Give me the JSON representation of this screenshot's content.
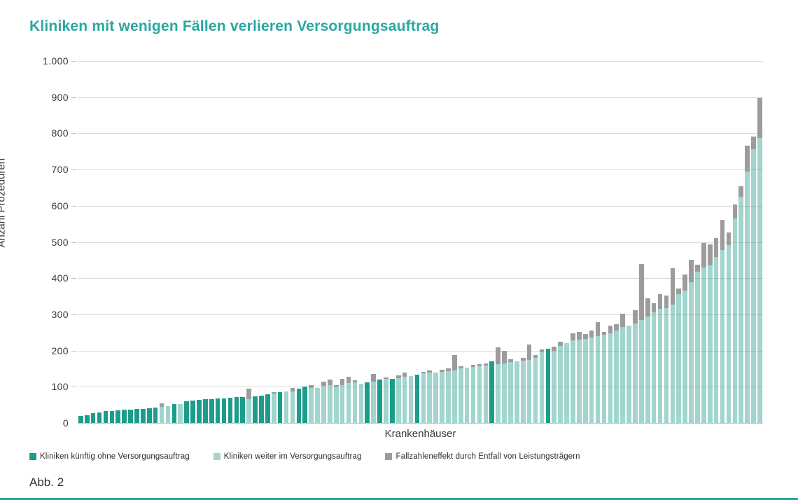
{
  "page": {
    "title": "Kliniken mit wenigen Fällen verlieren Versorgungsauftrag",
    "caption": "Abb. 2"
  },
  "colors": {
    "title_teal": "#2ba6a1",
    "bar_dark_teal": "#1e9c8b",
    "bar_light_teal": "#a9d4c9",
    "bar_gray": "#9c9c9c",
    "gridline": "#d9d9d9",
    "axis_text": "#3a3a3a"
  },
  "chart_data": {
    "type": "bar",
    "title": "Kliniken mit wenigen Fällen verlieren Versorgungsauftrag",
    "xlabel": "Krankenhäuser",
    "ylabel": "Anzahl Prozeduren",
    "ylim": [
      0,
      1000
    ],
    "grid": true,
    "y_ticks": [
      {
        "value": 0,
        "label": "0"
      },
      {
        "value": 100,
        "label": "100"
      },
      {
        "value": 200,
        "label": "200"
      },
      {
        "value": 300,
        "label": "300"
      },
      {
        "value": 400,
        "label": "400"
      },
      {
        "value": 500,
        "label": "500"
      },
      {
        "value": 600,
        "label": "600"
      },
      {
        "value": 700,
        "label": "700"
      },
      {
        "value": 800,
        "label": "800"
      },
      {
        "value": 900,
        "label": "900"
      },
      {
        "value": 1000,
        "label": "1.000"
      }
    ],
    "legend": [
      {
        "key": "d",
        "label": "Kliniken künftig ohne Versorgungsauftrag",
        "color": "#1e9c8b"
      },
      {
        "key": "l",
        "label": "Kliniken weiter im Versorgungsauftrag",
        "color": "#a9d4c9"
      },
      {
        "key": "cap",
        "label": "Fallzahleneffekt durch Entfall von Leistungsträgern",
        "color": "#9c9c9c"
      }
    ],
    "legend_position": "bottom",
    "bar_encoding": [
      "procedures_teal_value",
      "segment: d=dark(ohne Versorgungsauftrag) l=light(weiter im Versorgungsauftrag)",
      "gray_cap_total_or_null"
    ],
    "bars": [
      [
        20,
        "d",
        null
      ],
      [
        22,
        "d",
        null
      ],
      [
        27,
        "d",
        null
      ],
      [
        30,
        "d",
        null
      ],
      [
        32,
        "d",
        null
      ],
      [
        33,
        "d",
        null
      ],
      [
        35,
        "d",
        null
      ],
      [
        36,
        "d",
        null
      ],
      [
        37,
        "d",
        null
      ],
      [
        38,
        "d",
        null
      ],
      [
        39,
        "d",
        null
      ],
      [
        40,
        "d",
        null
      ],
      [
        42,
        "d",
        null
      ],
      [
        44,
        "l",
        55
      ],
      [
        46,
        "l",
        null
      ],
      [
        52,
        "d",
        null
      ],
      [
        52,
        "l",
        null
      ],
      [
        60,
        "d",
        null
      ],
      [
        62,
        "d",
        null
      ],
      [
        64,
        "d",
        null
      ],
      [
        65,
        "d",
        null
      ],
      [
        66,
        "d",
        null
      ],
      [
        67,
        "d",
        null
      ],
      [
        68,
        "d",
        null
      ],
      [
        70,
        "d",
        null
      ],
      [
        71,
        "d",
        null
      ],
      [
        72,
        "d",
        null
      ],
      [
        66,
        "l",
        95
      ],
      [
        73,
        "d",
        null
      ],
      [
        76,
        "d",
        null
      ],
      [
        80,
        "d",
        null
      ],
      [
        82,
        "l",
        86
      ],
      [
        85,
        "d",
        null
      ],
      [
        87,
        "l",
        null
      ],
      [
        88,
        "l",
        97
      ],
      [
        95,
        "d",
        null
      ],
      [
        100,
        "d",
        null
      ],
      [
        97,
        "l",
        105
      ],
      [
        97,
        "l",
        null
      ],
      [
        103,
        "l",
        114
      ],
      [
        105,
        "l",
        119
      ],
      [
        100,
        "l",
        104
      ],
      [
        105,
        "l",
        122
      ],
      [
        110,
        "l",
        128
      ],
      [
        112,
        "l",
        118
      ],
      [
        108,
        "l",
        null
      ],
      [
        112,
        "d",
        null
      ],
      [
        115,
        "l",
        135
      ],
      [
        119,
        "d",
        null
      ],
      [
        121,
        "l",
        126
      ],
      [
        122,
        "d",
        null
      ],
      [
        124,
        "l",
        132
      ],
      [
        127,
        "l",
        140
      ],
      [
        130,
        "l",
        null
      ],
      [
        133,
        "d",
        null
      ],
      [
        137,
        "l",
        142
      ],
      [
        139,
        "l",
        145
      ],
      [
        140,
        "l",
        null
      ],
      [
        142,
        "l",
        148
      ],
      [
        144,
        "l",
        150
      ],
      [
        146,
        "l",
        188
      ],
      [
        150,
        "l",
        157
      ],
      [
        152,
        "l",
        null
      ],
      [
        154,
        "l",
        161
      ],
      [
        156,
        "l",
        163
      ],
      [
        158,
        "l",
        165
      ],
      [
        170,
        "d",
        null
      ],
      [
        162,
        "l",
        208
      ],
      [
        165,
        "l",
        200
      ],
      [
        168,
        "l",
        176
      ],
      [
        170,
        "l",
        null
      ],
      [
        172,
        "l",
        180
      ],
      [
        175,
        "l",
        217
      ],
      [
        180,
        "l",
        188
      ],
      [
        195,
        "l",
        203
      ],
      [
        205,
        "d",
        null
      ],
      [
        200,
        "l",
        210
      ],
      [
        212,
        "l",
        225
      ],
      [
        220,
        "l",
        null
      ],
      [
        228,
        "l",
        248
      ],
      [
        230,
        "l",
        252
      ],
      [
        232,
        "l",
        246
      ],
      [
        236,
        "l",
        256
      ],
      [
        240,
        "l",
        279
      ],
      [
        244,
        "l",
        252
      ],
      [
        248,
        "l",
        268
      ],
      [
        255,
        "l",
        272
      ],
      [
        265,
        "l",
        302
      ],
      [
        268,
        "l",
        null
      ],
      [
        274,
        "l",
        312
      ],
      [
        284,
        "l",
        439
      ],
      [
        294,
        "l",
        344
      ],
      [
        305,
        "l",
        331
      ],
      [
        315,
        "l",
        355
      ],
      [
        317,
        "l",
        352
      ],
      [
        327,
        "l",
        428
      ],
      [
        355,
        "l",
        372
      ],
      [
        366,
        "l",
        410
      ],
      [
        389,
        "l",
        451
      ],
      [
        417,
        "l",
        437
      ],
      [
        430,
        "l",
        497
      ],
      [
        436,
        "l",
        494
      ],
      [
        458,
        "l",
        510
      ],
      [
        477,
        "l",
        561
      ],
      [
        491,
        "l",
        527
      ],
      [
        565,
        "l",
        604
      ],
      [
        625,
        "l",
        653
      ],
      [
        694,
        "l",
        766
      ],
      [
        757,
        "l",
        791
      ],
      [
        787,
        "l",
        897
      ]
    ]
  }
}
